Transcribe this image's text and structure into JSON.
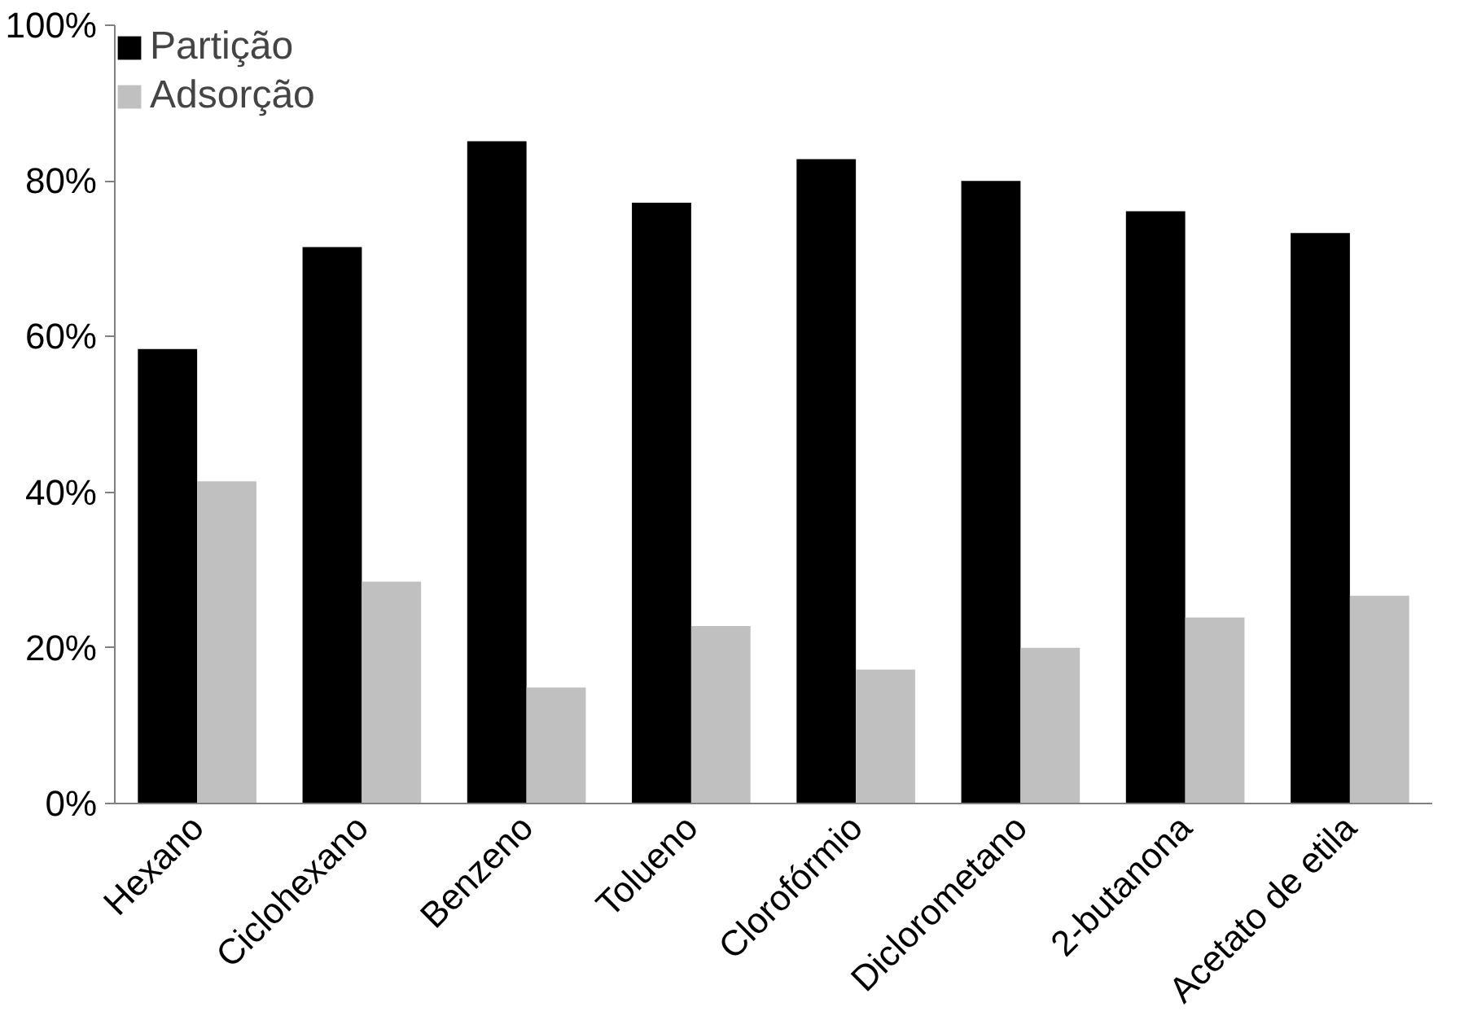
{
  "chart_data": {
    "type": "bar",
    "categories": [
      "Hexano",
      "Ciclohexano",
      "Benzeno",
      "Tolueno",
      "Clorofórmio",
      "Diclorometano",
      "2-butanona",
      "Acetato de etila"
    ],
    "series": [
      {
        "name": "Partição",
        "color": "#000000",
        "values": [
          58.4,
          71.5,
          85.1,
          77.2,
          82.8,
          80.0,
          76.1,
          73.3
        ]
      },
      {
        "name": "Adsorção",
        "color": "#c0c0c0",
        "values": [
          41.4,
          28.5,
          14.9,
          22.8,
          17.2,
          20.0,
          23.9,
          26.7
        ]
      }
    ],
    "ylim": [
      0,
      100
    ],
    "yticks": [
      {
        "value": 0,
        "label": "0%"
      },
      {
        "value": 20,
        "label": "20%"
      },
      {
        "value": 40,
        "label": "40%"
      },
      {
        "value": 60,
        "label": "60%"
      },
      {
        "value": 80,
        "label": "80%"
      },
      {
        "value": 100,
        "label": "100%"
      }
    ],
    "grid": false,
    "legend": "top left"
  }
}
